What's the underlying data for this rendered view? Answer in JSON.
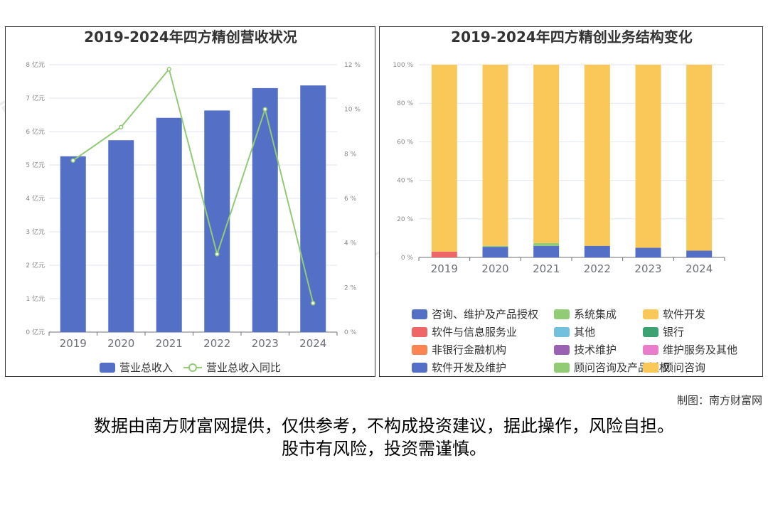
{
  "credit": "制图：南方财富网",
  "disclaimer_line1": "数据由南方财富网提供，仅供参考，不构成投资建议，据此操作，风险自担。",
  "disclaimer_line2": "股市有风险，投资需谨慎。",
  "watermark_text": "南方财富网",
  "chart_data": [
    {
      "type": "bar",
      "title": "2019-2024年四方精创营收状况",
      "categories": [
        "2019",
        "2020",
        "2021",
        "2022",
        "2023",
        "2024"
      ],
      "y_axis_left": {
        "ticks": [
          "0 亿元",
          "1 亿元",
          "2 亿元",
          "3 亿元",
          "4 亿元",
          "5 亿元",
          "6 亿元",
          "7 亿元",
          "8 亿元"
        ],
        "range": [
          0,
          8
        ]
      },
      "y_axis_right": {
        "ticks": [
          "0 %",
          "2 %",
          "4 %",
          "6 %",
          "8 %",
          "10 %",
          "12 %"
        ],
        "range": [
          0,
          12
        ]
      },
      "series": [
        {
          "name": "营业总收入",
          "kind": "bar",
          "axis": "left",
          "color": "#5470c6",
          "values": [
            5.26,
            5.74,
            6.41,
            6.63,
            7.3,
            7.38
          ]
        },
        {
          "name": "营业总收入同比",
          "kind": "line",
          "axis": "right",
          "color": "#91cc75",
          "values": [
            7.7,
            9.2,
            11.8,
            3.5,
            10.0,
            1.3
          ]
        }
      ],
      "legend": "bottom",
      "grid": true
    },
    {
      "type": "bar",
      "stacked": true,
      "title": "2019-2024年四方精创业务结构变化",
      "categories": [
        "2019",
        "2020",
        "2021",
        "2022",
        "2023",
        "2024"
      ],
      "y_axis": {
        "ticks": [
          "0 %",
          "20 %",
          "40 %",
          "60 %",
          "80 %",
          "100 %"
        ],
        "range": [
          0,
          100
        ]
      },
      "series": [
        {
          "name": "咨询、维护及产品授权",
          "color": "#5470c6",
          "values": [
            0,
            5.5,
            6,
            6,
            5,
            3.5
          ]
        },
        {
          "name": "系统集成",
          "color": "#91cc75",
          "values": [
            0,
            0.5,
            1.5,
            0,
            0,
            0
          ]
        },
        {
          "name": "软件开发",
          "color": "#fac858",
          "values": [
            0,
            94,
            92.5,
            94,
            95,
            96.5
          ]
        },
        {
          "name": "软件与信息服务业",
          "color": "#ee6666",
          "values": [
            3,
            0,
            0,
            0,
            0,
            0
          ]
        },
        {
          "name": "其他",
          "color": "#73c0de",
          "values": [
            0,
            0,
            0,
            0,
            0,
            0
          ]
        },
        {
          "name": "银行",
          "color": "#3ba272",
          "values": [
            0,
            0,
            0,
            0,
            0,
            0
          ]
        },
        {
          "name": "非银行金融机构",
          "color": "#fc8452",
          "values": [
            0,
            0,
            0,
            0,
            0,
            0
          ]
        },
        {
          "name": "技术维护",
          "color": "#9a60b4",
          "values": [
            0,
            0,
            0,
            0,
            0,
            0
          ]
        },
        {
          "name": "维护服务及其他",
          "color": "#ea7ccc",
          "values": [
            0,
            0,
            0,
            0,
            0,
            0
          ]
        },
        {
          "name": "软件开发及维护",
          "color": "#5470c6",
          "values": [
            0,
            0,
            0,
            0,
            0,
            0
          ]
        },
        {
          "name": "顾问咨询及产品授权",
          "color": "#91cc75",
          "values": [
            0,
            0,
            0,
            0,
            0,
            0
          ]
        },
        {
          "name": "顾问咨询",
          "color": "#fac858",
          "values": [
            97,
            0,
            0,
            0,
            0,
            0
          ]
        }
      ],
      "legend": "bottom",
      "grid": true
    }
  ]
}
